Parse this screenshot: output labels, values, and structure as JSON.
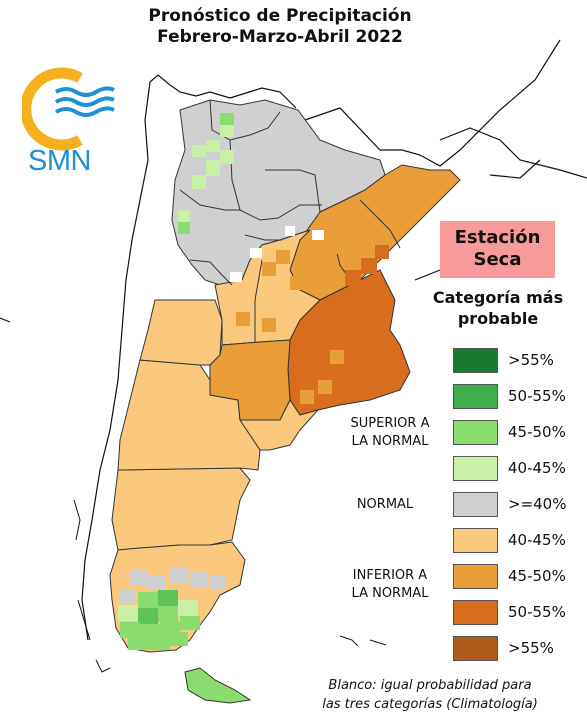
{
  "title": {
    "line1": "Pronóstico de Precipitación",
    "line2": "Febrero-Marzo-Abril 2022"
  },
  "logo": {
    "text": "SMN"
  },
  "season_box": {
    "line1": "Estación",
    "line2": "Seca",
    "color": "#f69a9a"
  },
  "legend": {
    "title_line1": "Categoría más",
    "title_line2": "probable",
    "entries": [
      {
        "label": ">55%",
        "color": "#177a2e"
      },
      {
        "label": "50-55%",
        "color": "#3fae4c"
      },
      {
        "label": "45-50%",
        "color": "#8adc6e"
      },
      {
        "label": "40-45%",
        "color": "#c9f0a6"
      },
      {
        "label": ">=40%",
        "color": "#d0d0d0"
      },
      {
        "label": "40-45%",
        "color": "#fbc97e"
      },
      {
        "label": "45-50%",
        "color": "#ea9e3a"
      },
      {
        "label": "50-55%",
        "color": "#d86d1e"
      },
      {
        "label": ">55%",
        "color": "#b05a1c"
      }
    ],
    "groups": {
      "superior_line1": "SUPERIOR A",
      "superior_line2": "LA NORMAL",
      "normal": "NORMAL",
      "inferior_line1": "INFERIOR A",
      "inferior_line2": "LA NORMAL"
    }
  },
  "footnote": {
    "line1": "Blanco: igual probabilidad para",
    "line2": "las tres categorías (Climatología)"
  },
  "colors": {
    "gray": "#d0d0d0",
    "light_green": "#c9f0a6",
    "green": "#8adc6e",
    "green_dark": "#5fc25a",
    "light_orange": "#fbc97e",
    "orange": "#ea9e3a",
    "dark_orange": "#d86d1e",
    "accent_yellow": "#f6b01e",
    "accent_blue": "#1f8fd6"
  }
}
